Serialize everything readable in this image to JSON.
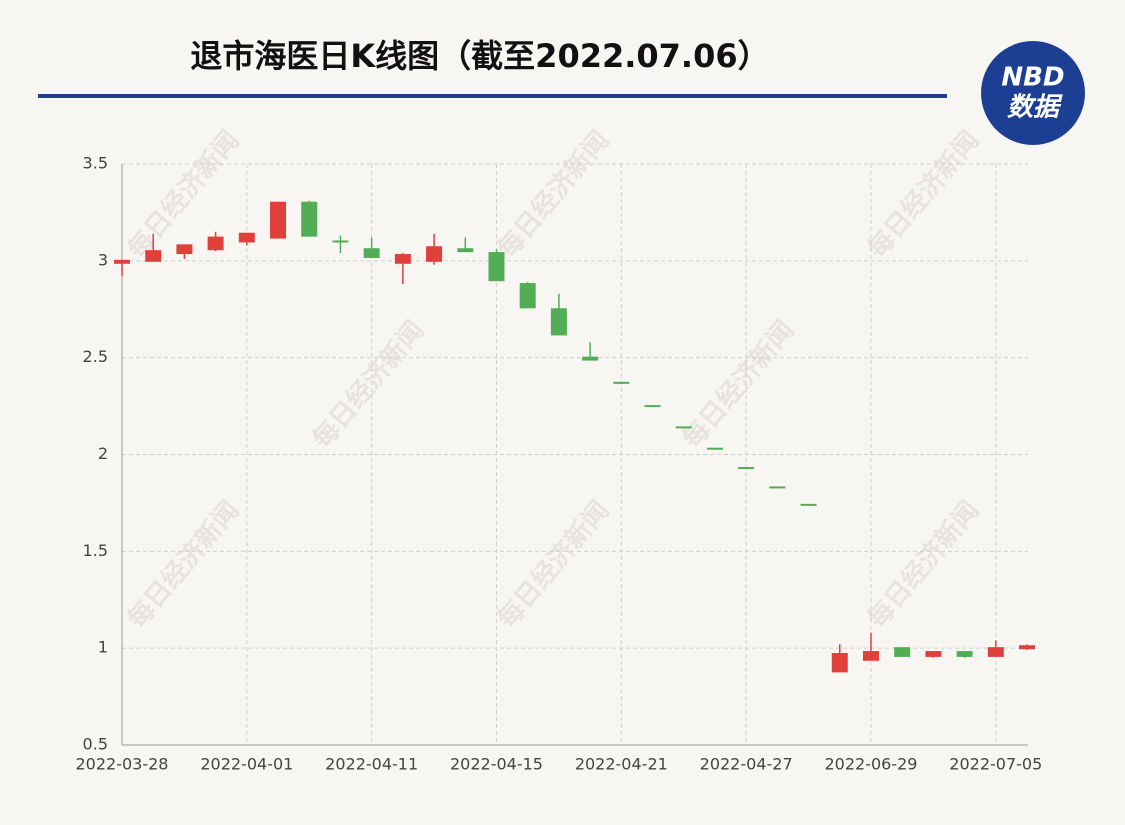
{
  "title": "退市海医日K线图（截至2022.07.06）",
  "logo": {
    "top": "NBD",
    "bottom": "数据"
  },
  "watermark": "每日经济新闻",
  "chart_data": {
    "type": "candlestick",
    "categories": [
      "2022-03-28",
      null,
      null,
      null,
      "2022-04-01",
      null,
      null,
      null,
      "2022-04-11",
      null,
      null,
      null,
      "2022-04-15",
      null,
      null,
      null,
      "2022-04-21",
      null,
      null,
      null,
      "2022-04-27",
      null,
      null,
      null,
      "2022-06-29",
      null,
      null,
      null,
      "2022-07-05",
      null
    ],
    "open": [
      2.99,
      3.0,
      3.04,
      3.06,
      3.1,
      3.12,
      3.3,
      3.1,
      3.06,
      2.99,
      3.0,
      3.06,
      3.04,
      2.88,
      2.75,
      2.5,
      2.37,
      2.25,
      2.14,
      2.03,
      1.93,
      1.83,
      1.74,
      0.88,
      0.94,
      1.0,
      0.96,
      0.98,
      0.96,
      1.0
    ],
    "high": [
      3.0,
      3.14,
      3.08,
      3.15,
      3.14,
      3.3,
      3.31,
      3.13,
      3.12,
      3.04,
      3.14,
      3.12,
      3.06,
      2.89,
      2.83,
      2.58,
      2.37,
      2.25,
      2.14,
      2.03,
      1.93,
      1.83,
      1.74,
      1.02,
      1.08,
      1.0,
      0.98,
      0.98,
      1.04,
      1.02
    ],
    "low": [
      2.92,
      3.0,
      3.01,
      3.05,
      3.08,
      3.12,
      3.13,
      3.04,
      3.02,
      2.88,
      2.98,
      3.05,
      2.9,
      2.76,
      2.62,
      2.49,
      2.37,
      2.25,
      2.14,
      2.03,
      1.93,
      1.83,
      1.74,
      0.88,
      0.94,
      0.96,
      0.95,
      0.95,
      0.96,
      0.99
    ],
    "close": [
      3.0,
      3.05,
      3.08,
      3.12,
      3.14,
      3.3,
      3.13,
      3.1,
      3.02,
      3.03,
      3.07,
      3.05,
      2.9,
      2.76,
      2.62,
      2.49,
      2.37,
      2.25,
      2.14,
      2.03,
      1.93,
      1.83,
      1.74,
      0.97,
      0.98,
      0.96,
      0.98,
      0.96,
      1.0,
      1.01
    ],
    "up_color": "#e0403c",
    "down_color": "#52ad55",
    "ylim": [
      0.5,
      3.5
    ],
    "yticks": [
      0.5,
      1,
      1.5,
      2,
      2.5,
      3,
      3.5
    ],
    "grid": true
  }
}
